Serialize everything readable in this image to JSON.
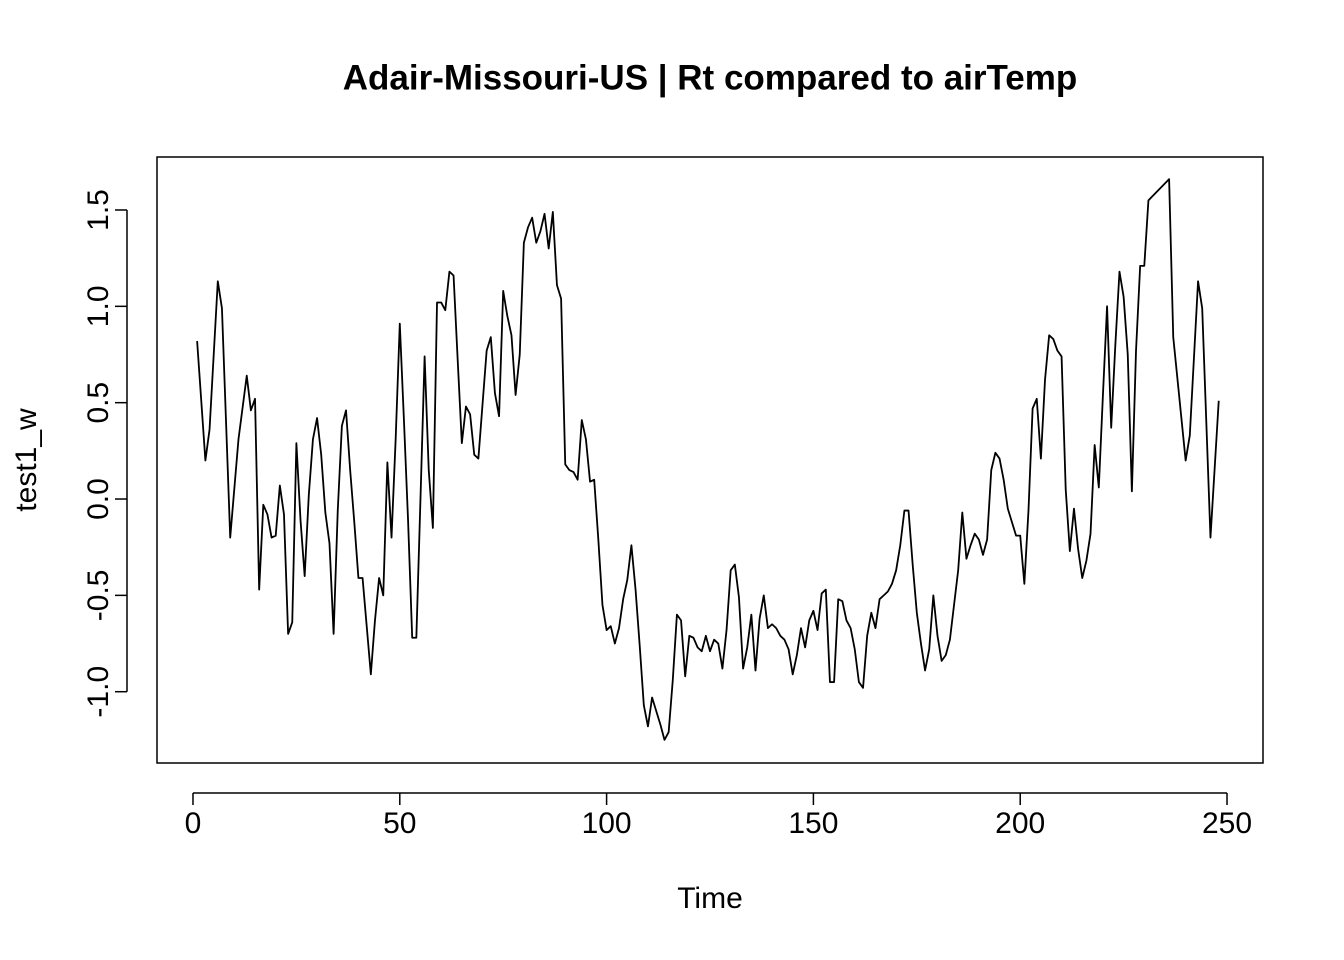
{
  "chart_data": {
    "type": "line",
    "title": "Adair-Missouri-US | Rt compared to airTemp",
    "x_label": "Time",
    "y_label": "test1_w",
    "color": "#000000",
    "x": [
      1,
      3,
      4,
      6,
      7,
      9,
      11,
      13,
      14,
      15,
      16,
      17,
      18,
      19,
      20,
      21,
      22,
      23,
      24,
      25,
      26,
      27,
      28,
      29,
      30,
      31,
      32,
      33,
      34,
      35,
      36,
      37,
      38,
      39,
      40,
      41,
      43,
      44,
      45,
      46,
      47,
      48,
      49,
      50,
      51,
      52,
      53,
      54,
      55,
      56,
      57,
      58,
      59,
      60,
      61,
      62,
      63,
      64,
      65,
      66,
      67,
      68,
      69,
      70,
      71,
      72,
      73,
      74,
      75,
      76,
      77,
      78,
      79,
      80,
      81,
      82,
      83,
      84,
      85,
      86,
      87,
      88,
      89,
      90,
      91,
      92,
      93,
      94,
      95,
      96,
      97,
      98,
      99,
      100,
      101,
      102,
      103,
      104,
      105,
      106,
      107,
      108,
      109,
      110,
      111,
      112,
      113,
      114,
      115,
      116,
      117,
      118,
      119,
      120,
      121,
      122,
      123,
      124,
      125,
      126,
      127,
      128,
      129,
      130,
      131,
      132,
      133,
      134,
      135,
      136,
      137,
      138,
      139,
      140,
      141,
      142,
      143,
      144,
      145,
      146,
      147,
      148,
      149,
      150,
      151,
      152,
      153,
      154,
      155,
      156,
      157,
      158,
      159,
      160,
      161,
      162,
      163,
      164,
      165,
      166,
      167,
      168,
      169,
      170,
      171,
      172,
      173,
      174,
      175,
      176,
      177,
      178,
      179,
      180,
      181,
      182,
      183,
      184,
      185,
      186,
      187,
      188,
      189,
      190,
      191,
      192,
      193,
      194,
      195,
      196,
      197,
      198,
      199,
      200,
      201,
      202,
      203,
      204,
      205,
      206,
      207,
      208,
      209,
      210,
      211,
      212,
      213,
      214,
      215,
      216,
      217,
      218,
      219,
      220,
      221,
      222,
      223,
      224,
      225,
      226,
      227,
      228,
      229,
      230,
      231,
      236,
      237,
      240,
      241,
      243,
      244,
      246,
      248
    ],
    "values": [
      0.82,
      0.2,
      0.36,
      1.13,
      0.99,
      -0.2,
      0.31,
      0.64,
      0.46,
      0.52,
      -0.47,
      -0.03,
      -0.08,
      -0.2,
      -0.19,
      0.07,
      -0.08,
      -0.7,
      -0.64,
      0.29,
      -0.11,
      -0.4,
      0.02,
      0.31,
      0.42,
      0.23,
      -0.07,
      -0.23,
      -0.7,
      -0.06,
      0.38,
      0.46,
      0.15,
      -0.12,
      -0.41,
      -0.41,
      -0.91,
      -0.63,
      -0.41,
      -0.5,
      0.19,
      -0.2,
      0.31,
      0.91,
      0.41,
      -0.11,
      -0.72,
      -0.72,
      0.0,
      0.74,
      0.15,
      -0.15,
      1.02,
      1.02,
      0.98,
      1.18,
      1.16,
      0.72,
      0.29,
      0.48,
      0.44,
      0.23,
      0.21,
      0.49,
      0.77,
      0.84,
      0.55,
      0.43,
      1.08,
      0.95,
      0.85,
      0.54,
      0.75,
      1.33,
      1.41,
      1.46,
      1.33,
      1.39,
      1.48,
      1.3,
      1.49,
      1.11,
      1.04,
      0.18,
      0.15,
      0.14,
      0.1,
      0.41,
      0.31,
      0.09,
      0.1,
      -0.21,
      -0.55,
      -0.68,
      -0.66,
      -0.75,
      -0.67,
      -0.52,
      -0.42,
      -0.24,
      -0.47,
      -0.76,
      -1.07,
      -1.18,
      -1.03,
      -1.1,
      -1.17,
      -1.25,
      -1.21,
      -0.94,
      -0.6,
      -0.63,
      -0.92,
      -0.71,
      -0.72,
      -0.77,
      -0.79,
      -0.71,
      -0.79,
      -0.73,
      -0.75,
      -0.88,
      -0.68,
      -0.37,
      -0.34,
      -0.51,
      -0.88,
      -0.77,
      -0.6,
      -0.89,
      -0.62,
      -0.5,
      -0.67,
      -0.65,
      -0.67,
      -0.71,
      -0.73,
      -0.78,
      -0.91,
      -0.81,
      -0.67,
      -0.77,
      -0.63,
      -0.58,
      -0.68,
      -0.49,
      -0.47,
      -0.95,
      -0.95,
      -0.52,
      -0.53,
      -0.63,
      -0.67,
      -0.78,
      -0.95,
      -0.98,
      -0.71,
      -0.59,
      -0.67,
      -0.52,
      -0.5,
      -0.48,
      -0.44,
      -0.37,
      -0.24,
      -0.06,
      -0.06,
      -0.34,
      -0.59,
      -0.75,
      -0.89,
      -0.78,
      -0.5,
      -0.71,
      -0.84,
      -0.81,
      -0.73,
      -0.55,
      -0.37,
      -0.07,
      -0.31,
      -0.24,
      -0.18,
      -0.21,
      -0.29,
      -0.21,
      0.15,
      0.24,
      0.21,
      0.1,
      -0.05,
      -0.12,
      -0.19,
      -0.19,
      -0.44,
      -0.06,
      0.47,
      0.52,
      0.21,
      0.62,
      0.85,
      0.83,
      0.77,
      0.74,
      0.05,
      -0.27,
      -0.05,
      -0.26,
      -0.41,
      -0.32,
      -0.18,
      0.28,
      0.06,
      0.54,
      1.0,
      0.37,
      0.8,
      1.18,
      1.05,
      0.75,
      0.04,
      0.77,
      1.21,
      1.21,
      1.55,
      1.66,
      0.84,
      0.2,
      0.33,
      1.13,
      0.99,
      -0.2,
      0.51
    ],
    "xlim": [
      -8.7,
      258.7
    ],
    "ylim": [
      -1.37,
      1.775
    ],
    "xticks": [
      0,
      50,
      100,
      150,
      200,
      250
    ],
    "yticks": [
      {
        "value": -1,
        "label": "-1.0"
      },
      -0.5,
      {
        "value": 0,
        "label": "0.0"
      },
      0.5,
      {
        "value": 1,
        "label": "1.0"
      },
      1.5
    ]
  }
}
